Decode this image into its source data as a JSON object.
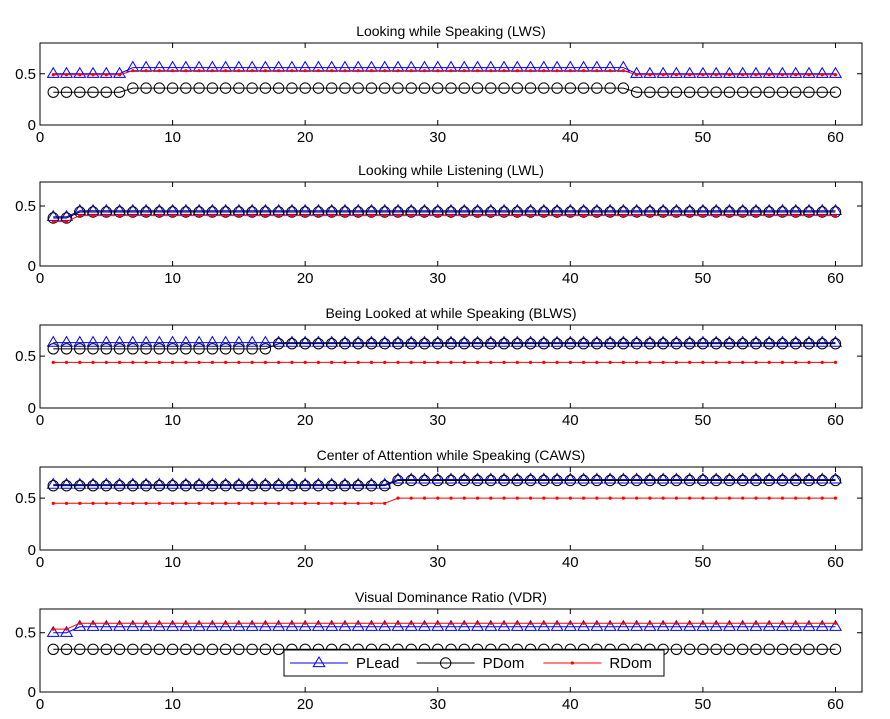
{
  "chart_data": [
    {
      "type": "line",
      "title": "Looking while Speaking (LWS)",
      "xlim": [
        0,
        62
      ],
      "ylim": [
        0,
        0.8
      ],
      "xticks": [
        0,
        10,
        20,
        30,
        40,
        50,
        60
      ],
      "yticks": [
        0,
        0.5
      ],
      "grid": false,
      "x_range": [
        1,
        60
      ],
      "series": [
        {
          "name": "PLead",
          "color": "#0000ff",
          "marker": "triangle",
          "segments": [
            {
              "from": 1,
              "to": 6,
              "value": 0.5
            },
            {
              "from": 7,
              "to": 44,
              "value": 0.56
            },
            {
              "from": 45,
              "to": 60,
              "value": 0.5
            }
          ]
        },
        {
          "name": "PDom",
          "color": "#000000",
          "marker": "circle",
          "segments": [
            {
              "from": 1,
              "to": 6,
              "value": 0.32
            },
            {
              "from": 7,
              "to": 44,
              "value": 0.36
            },
            {
              "from": 45,
              "to": 60,
              "value": 0.32
            }
          ]
        },
        {
          "name": "RDom",
          "color": "#ff0000",
          "marker": "dot",
          "segments": [
            {
              "from": 1,
              "to": 6,
              "value": 0.49
            },
            {
              "from": 7,
              "to": 44,
              "value": 0.53
            },
            {
              "from": 45,
              "to": 60,
              "value": 0.49
            }
          ]
        }
      ]
    },
    {
      "type": "line",
      "title": "Looking while Listening (LWL)",
      "xlim": [
        0,
        62
      ],
      "ylim": [
        0,
        0.7
      ],
      "xticks": [
        0,
        10,
        20,
        30,
        40,
        50,
        60
      ],
      "yticks": [
        0,
        0.5
      ],
      "grid": false,
      "x_range": [
        1,
        60
      ],
      "series": [
        {
          "name": "PLead",
          "color": "#0000ff",
          "marker": "triangle",
          "segments": [
            {
              "from": 1,
              "to": 2,
              "value": 0.41
            },
            {
              "from": 3,
              "to": 60,
              "value": 0.46
            }
          ]
        },
        {
          "name": "PDom",
          "color": "#000000",
          "marker": "circle",
          "segments": [
            {
              "from": 1,
              "to": 2,
              "value": 0.4
            },
            {
              "from": 3,
              "to": 60,
              "value": 0.45
            }
          ]
        },
        {
          "name": "RDom",
          "color": "#ff0000",
          "marker": "dot",
          "segments": [
            {
              "from": 1,
              "to": 2,
              "value": 0.37
            },
            {
              "from": 3,
              "to": 60,
              "value": 0.42
            }
          ]
        }
      ]
    },
    {
      "type": "line",
      "title": "Being Looked at while Speaking (BLWS)",
      "xlim": [
        0,
        62
      ],
      "ylim": [
        0,
        0.8
      ],
      "xticks": [
        0,
        10,
        20,
        30,
        40,
        50,
        60
      ],
      "yticks": [
        0,
        0.5
      ],
      "grid": false,
      "x_range": [
        1,
        60
      ],
      "series": [
        {
          "name": "PLead",
          "color": "#0000ff",
          "marker": "triangle",
          "segments": [
            {
              "from": 1,
              "to": 60,
              "value": 0.63
            }
          ]
        },
        {
          "name": "PDom",
          "color": "#000000",
          "marker": "circle",
          "segments": [
            {
              "from": 1,
              "to": 17,
              "value": 0.57
            },
            {
              "from": 18,
              "to": 60,
              "value": 0.62
            }
          ]
        },
        {
          "name": "RDom",
          "color": "#ff0000",
          "marker": "dot",
          "segments": [
            {
              "from": 1,
              "to": 60,
              "value": 0.44
            }
          ]
        }
      ]
    },
    {
      "type": "line",
      "title": "Center of Attention while Speaking (CAWS)",
      "xlim": [
        0,
        62
      ],
      "ylim": [
        0,
        0.8
      ],
      "xticks": [
        0,
        10,
        20,
        30,
        40,
        50,
        60
      ],
      "yticks": [
        0,
        0.5
      ],
      "grid": false,
      "x_range": [
        1,
        60
      ],
      "series": [
        {
          "name": "PLead",
          "color": "#0000ff",
          "marker": "triangle",
          "segments": [
            {
              "from": 1,
              "to": 26,
              "value": 0.63
            },
            {
              "from": 27,
              "to": 60,
              "value": 0.68
            }
          ]
        },
        {
          "name": "PDom",
          "color": "#000000",
          "marker": "circle",
          "segments": [
            {
              "from": 1,
              "to": 26,
              "value": 0.62
            },
            {
              "from": 27,
              "to": 60,
              "value": 0.67
            }
          ]
        },
        {
          "name": "RDom",
          "color": "#ff0000",
          "marker": "dot",
          "segments": [
            {
              "from": 1,
              "to": 26,
              "value": 0.45
            },
            {
              "from": 27,
              "to": 60,
              "value": 0.5
            }
          ]
        }
      ]
    },
    {
      "type": "line",
      "title": "Visual Dominance Ratio (VDR)",
      "xlim": [
        0,
        62
      ],
      "ylim": [
        0,
        0.7
      ],
      "xticks": [
        0,
        10,
        20,
        30,
        40,
        50,
        60
      ],
      "yticks": [
        0,
        0.5
      ],
      "grid": false,
      "x_range": [
        1,
        60
      ],
      "legend": {
        "placement": "bottom-center",
        "entries": [
          "PLead",
          "PDom",
          "RDom"
        ]
      },
      "series": [
        {
          "name": "PLead",
          "color": "#0000ff",
          "marker": "triangle",
          "segments": [
            {
              "from": 1,
              "to": 2,
              "value": 0.5
            },
            {
              "from": 3,
              "to": 60,
              "value": 0.55
            }
          ]
        },
        {
          "name": "PDom",
          "color": "#000000",
          "marker": "circle",
          "segments": [
            {
              "from": 1,
              "to": 60,
              "value": 0.36
            }
          ]
        },
        {
          "name": "RDom",
          "color": "#ff0000",
          "marker": "dot",
          "segments": [
            {
              "from": 1,
              "to": 2,
              "value": 0.53
            },
            {
              "from": 3,
              "to": 60,
              "value": 0.58
            }
          ]
        }
      ]
    }
  ]
}
